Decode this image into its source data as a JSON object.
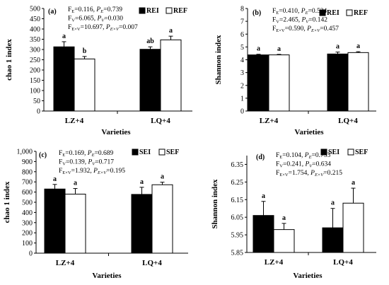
{
  "chart_data": [
    {
      "type": "bar",
      "panel_label": "(a)",
      "ylabel": "chao 1 index",
      "xlabel": "Varieties",
      "categories": [
        "LZ+4",
        "LQ+4"
      ],
      "ylim": [
        0,
        500
      ],
      "yticks": [
        0,
        50,
        100,
        150,
        200,
        250,
        300,
        350,
        400,
        450,
        500
      ],
      "ytick_labels": [
        "0",
        "50",
        "100",
        "150",
        "200",
        "250",
        "300",
        "350",
        "400",
        "450",
        "500"
      ],
      "series": [
        {
          "name": "REI",
          "color": "#000000",
          "values": [
            313,
            301
          ],
          "errors": [
            25,
            12
          ],
          "sig": [
            "a",
            "ab"
          ]
        },
        {
          "name": "REF",
          "color": "#ffffff",
          "values": [
            254,
            347
          ],
          "errors": [
            12,
            18
          ],
          "sig": [
            "b",
            "a"
          ]
        }
      ],
      "stats": [
        {
          "main": "F",
          "sub": "E",
          "sep": "=0.116, ",
          "pmain": "P",
          "psub": "E",
          "pval": "=0.739"
        },
        {
          "main": "F",
          "sub": "V",
          "sep": "=6.065, ",
          "pmain": "P",
          "psub": "V",
          "pval": "=0.030"
        },
        {
          "main": "F",
          "sub": "E×V",
          "sep": "=10.697, ",
          "pmain": "P",
          "psub": "E×V",
          "pval": "=0.007"
        }
      ]
    },
    {
      "type": "bar",
      "panel_label": "(b)",
      "ylabel": "Shannon index",
      "xlabel": "Varieties",
      "categories": [
        "LZ+4",
        "LQ+4"
      ],
      "ylim": [
        0,
        8
      ],
      "yticks": [
        0,
        1,
        2,
        3,
        4,
        5,
        6,
        7,
        8
      ],
      "ytick_labels": [
        "0",
        "1",
        "2",
        "3",
        "4",
        "5",
        "6",
        "7",
        "8"
      ],
      "series": [
        {
          "name": "REI",
          "color": "#000000",
          "values": [
            4.38,
            4.45
          ],
          "errors": [
            0.05,
            0.15
          ],
          "sig": [
            "a",
            "a"
          ]
        },
        {
          "name": "REF",
          "color": "#ffffff",
          "values": [
            4.38,
            4.56
          ],
          "errors": [
            0.04,
            0.07
          ],
          "sig": [
            "a",
            "a"
          ]
        }
      ],
      "stats": [
        {
          "main": "F",
          "sub": "E",
          "sep": "=0.410, ",
          "pmain": "P",
          "psub": "E",
          "pval": "=0.534"
        },
        {
          "main": "F",
          "sub": "V",
          "sep": "=2.465, ",
          "pmain": "P",
          "psub": "V",
          "pval": "=0.142"
        },
        {
          "main": "F",
          "sub": "E×V",
          "sep": "=0.590, ",
          "pmain": "P",
          "psub": "E×V",
          "pval": "=0.457"
        }
      ]
    },
    {
      "type": "bar",
      "panel_label": "(c)",
      "ylabel": "chao 1 index",
      "xlabel": "Varieties",
      "categories": [
        "LZ+4",
        "LQ+4"
      ],
      "ylim": [
        0,
        1000
      ],
      "yticks": [
        0,
        100,
        200,
        300,
        400,
        500,
        600,
        700,
        800,
        900,
        1000
      ],
      "ytick_labels": [
        "0",
        "100",
        "200",
        "300",
        "400",
        "500",
        "600",
        "700",
        "800",
        "900",
        "1,000"
      ],
      "series": [
        {
          "name": "SEI",
          "color": "#000000",
          "values": [
            630,
            577
          ],
          "errors": [
            45,
            70
          ],
          "sig": [
            "a",
            "a"
          ]
        },
        {
          "name": "SEF",
          "color": "#ffffff",
          "values": [
            580,
            672
          ],
          "errors": [
            55,
            25
          ],
          "sig": [
            "a",
            "a"
          ]
        }
      ],
      "stats": [
        {
          "main": "F",
          "sub": "E",
          "sep": "=0.169, ",
          "pmain": "P",
          "psub": "E",
          "pval": "=0.689"
        },
        {
          "main": "F",
          "sub": "V",
          "sep": "=0.139, ",
          "pmain": "P",
          "psub": "V",
          "pval": "=0.717"
        },
        {
          "main": "F",
          "sub": "E×V",
          "sep": "=1.932, ",
          "pmain": "P",
          "psub": "E×V",
          "pval": "=0.195"
        }
      ]
    },
    {
      "type": "bar",
      "panel_label": "(d)",
      "ylabel": "Shannon index",
      "xlabel": "Varieties",
      "categories": [
        "LZ+4",
        "LQ+4"
      ],
      "ylim": [
        5.85,
        6.4
      ],
      "yticks": [
        5.85,
        5.95,
        6.05,
        6.15,
        6.25,
        6.35
      ],
      "ytick_labels": [
        "5.85",
        "5.95",
        "6.05",
        "6.15",
        "6.25",
        "6.35"
      ],
      "series": [
        {
          "name": "SEI",
          "color": "#000000",
          "values": [
            6.06,
            5.99
          ],
          "errors": [
            0.08,
            0.11
          ],
          "sig": [
            "a",
            "a"
          ]
        },
        {
          "name": "SEF",
          "color": "#ffffff",
          "values": [
            5.98,
            6.13
          ],
          "errors": [
            0.035,
            0.085
          ],
          "sig": [
            "a",
            "a"
          ]
        }
      ],
      "stats": [
        {
          "main": "F",
          "sub": "E",
          "sep": "=0.104, ",
          "pmain": "P",
          "psub": "E",
          "pval": "=0.753"
        },
        {
          "main": "F",
          "sub": "V",
          "sep": "=0.241, ",
          "pmain": "P",
          "psub": "V",
          "pval": "=0.634"
        },
        {
          "main": "F",
          "sub": "E×V",
          "sep": "=1.754, ",
          "pmain": "P",
          "psub": "E×V",
          "pval": "=0.215"
        }
      ]
    }
  ]
}
